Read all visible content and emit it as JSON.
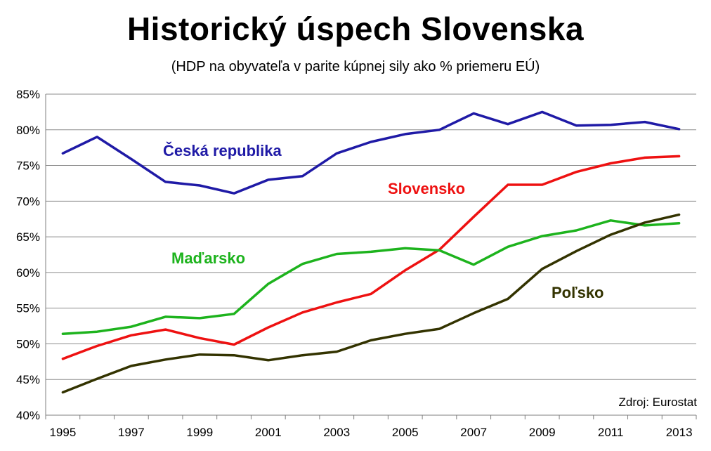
{
  "chart_data": {
    "type": "line",
    "title": "Historický úspech Slovenska",
    "subtitle": "(HDP na obyvateľa v parite kúpnej sily ako % priemeru EÚ)",
    "x": [
      1995,
      1996,
      1997,
      1998,
      1999,
      2000,
      2001,
      2002,
      2003,
      2004,
      2005,
      2006,
      2007,
      2008,
      2009,
      2010,
      2011,
      2012,
      2013
    ],
    "x_tick_labels": [
      "1995",
      "1997",
      "1999",
      "2001",
      "2003",
      "2005",
      "2007",
      "2009",
      "2011",
      "2013"
    ],
    "y_tick_labels": [
      "85%",
      "80%",
      "75%",
      "70%",
      "65%",
      "60%",
      "55%",
      "50%",
      "45%",
      "40%"
    ],
    "ylim": [
      40,
      85
    ],
    "grid": true,
    "series": [
      {
        "name": "Česká republika",
        "color": "#1f1aa6",
        "values": [
          76.7,
          79.0,
          75.9,
          72.7,
          72.2,
          71.1,
          73.0,
          73.5,
          76.7,
          78.3,
          79.4,
          80.0,
          82.3,
          80.8,
          82.5,
          80.6,
          80.7,
          81.1,
          80.1
        ]
      },
      {
        "name": "Slovensko",
        "color": "#ee1111",
        "values": [
          47.9,
          49.7,
          51.2,
          52.0,
          50.8,
          49.9,
          52.3,
          54.4,
          55.8,
          57.0,
          60.3,
          63.2,
          67.8,
          72.3,
          72.3,
          74.1,
          75.3,
          76.1,
          76.3
        ]
      },
      {
        "name": "Maďarsko",
        "color": "#1db31d",
        "values": [
          51.4,
          51.7,
          52.4,
          53.8,
          53.6,
          54.2,
          58.4,
          61.2,
          62.6,
          62.9,
          63.4,
          63.1,
          61.1,
          63.6,
          65.1,
          65.9,
          67.3,
          66.6,
          66.9
        ]
      },
      {
        "name": "Poľsko",
        "color": "#333300",
        "values": [
          43.2,
          45.1,
          46.9,
          47.8,
          48.5,
          48.4,
          47.7,
          48.4,
          48.9,
          50.5,
          51.4,
          52.1,
          54.3,
          56.3,
          60.5,
          63.0,
          65.3,
          67.0,
          68.1
        ]
      }
    ],
    "annotations": {
      "source": "Zdroj: Eurostat"
    }
  }
}
